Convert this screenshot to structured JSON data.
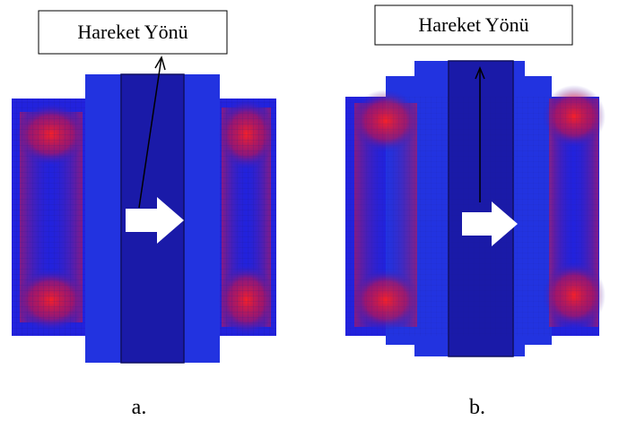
{
  "panels": [
    {
      "annotation": "Hareket Yönü",
      "caption": "a."
    },
    {
      "annotation": "Hareket Yönü",
      "caption": "b."
    }
  ]
}
